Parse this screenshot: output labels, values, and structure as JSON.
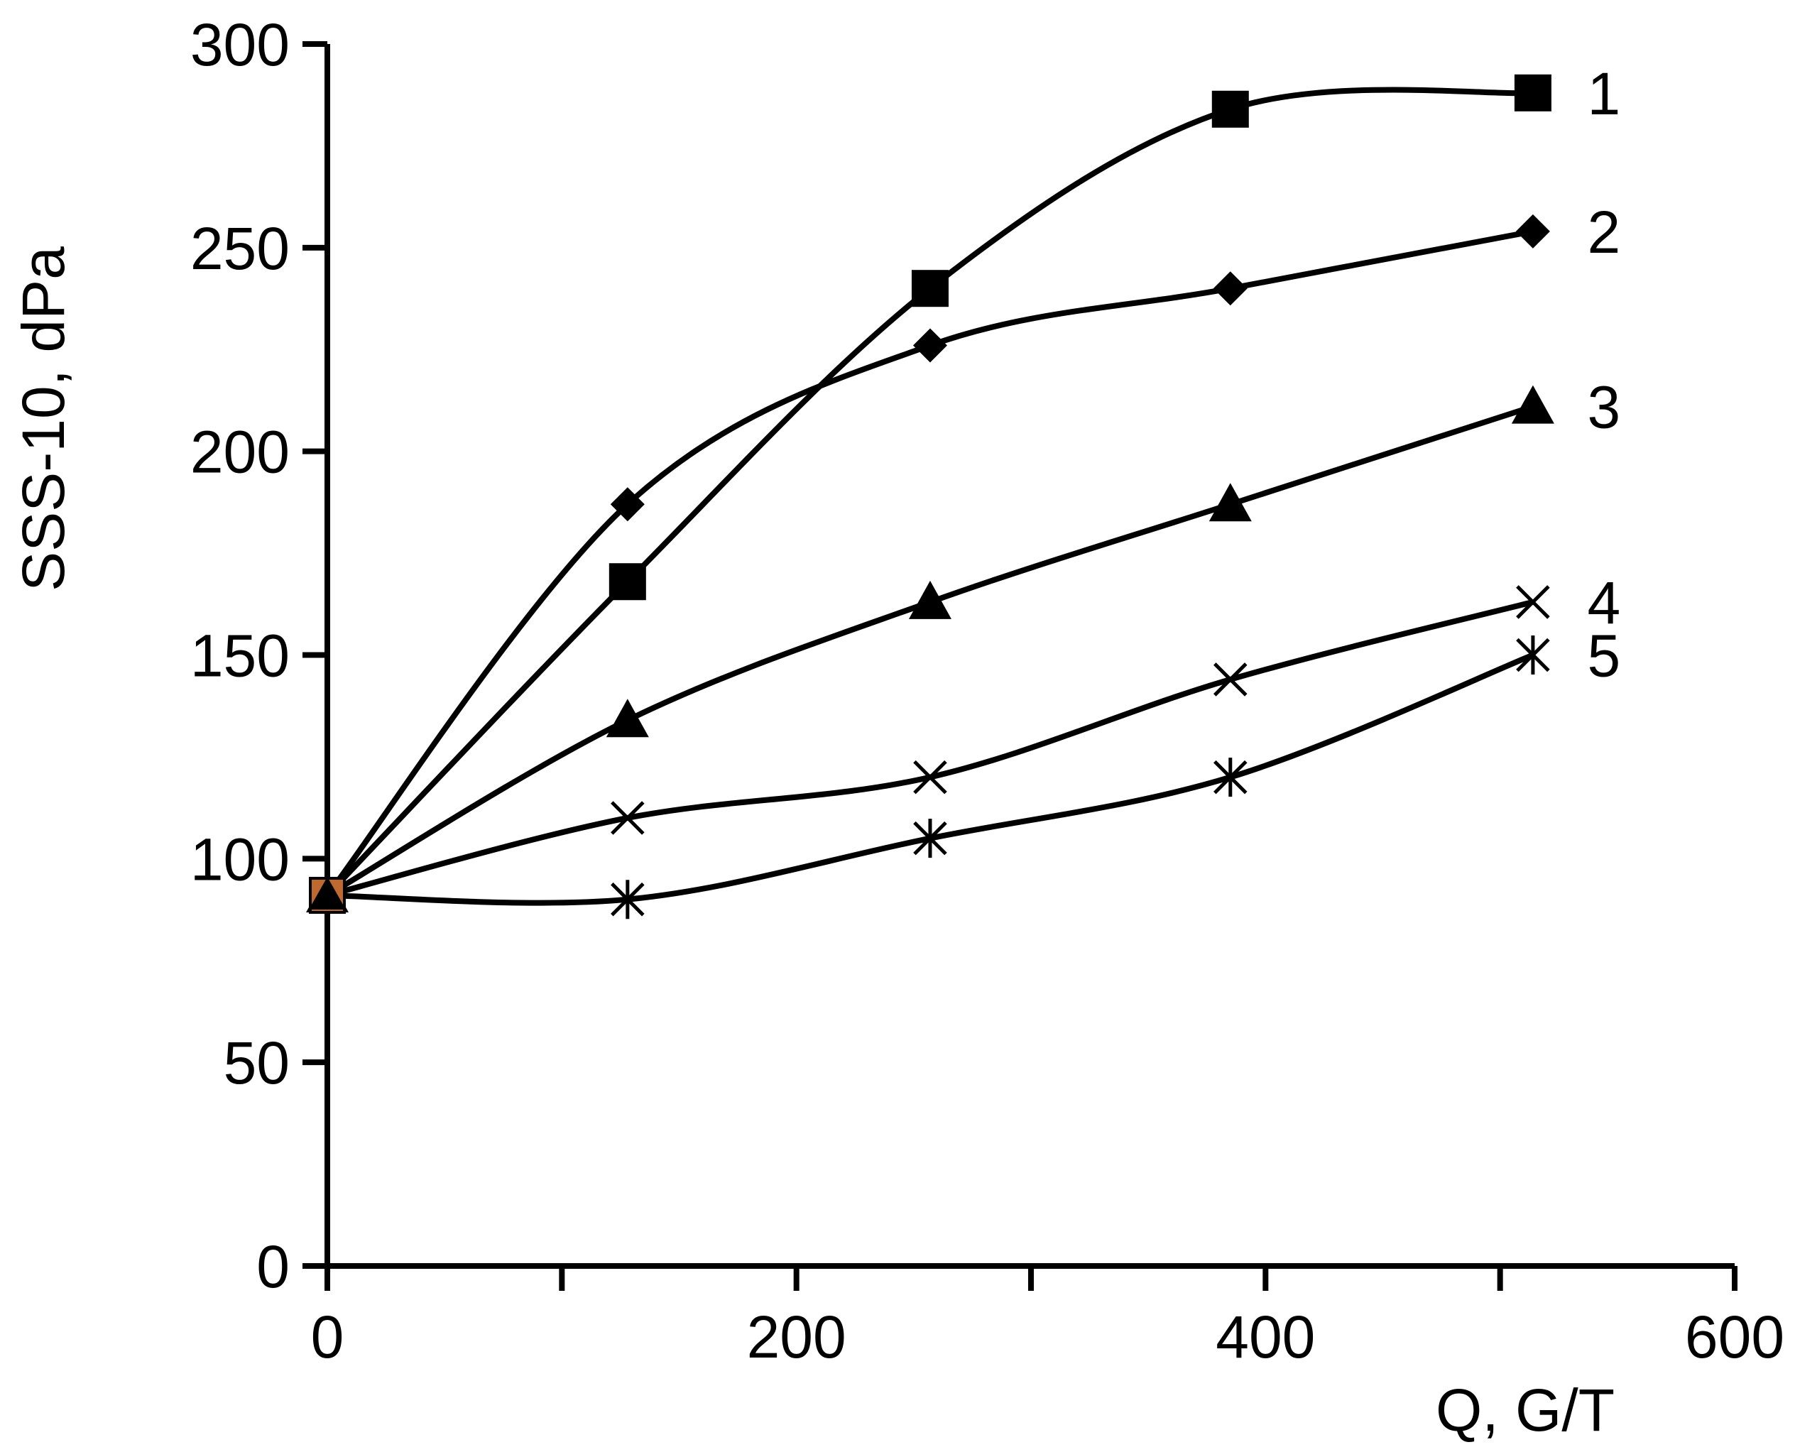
{
  "chart_data": {
    "type": "line",
    "title": "",
    "xlabel": "Q, G/T",
    "ylabel": "SSS-10, dPa",
    "xlim": [
      0,
      600
    ],
    "ylim": [
      0,
      300
    ],
    "x_ticks": [
      0,
      200,
      400,
      600
    ],
    "x_tick_labels": [
      "0",
      "200",
      "400",
      "600"
    ],
    "y_ticks": [
      0,
      50,
      100,
      150,
      200,
      250,
      300
    ],
    "y_tick_labels": [
      "0",
      "50",
      "100",
      "150",
      "200",
      "250",
      "300"
    ],
    "grid": false,
    "x": [
      0,
      128,
      257,
      385,
      514
    ],
    "series": [
      {
        "name": "1",
        "label": "1",
        "marker": "square",
        "values": [
          91,
          168,
          240,
          284,
          288
        ]
      },
      {
        "name": "2",
        "label": "2",
        "marker": "diamond",
        "values": [
          91,
          187,
          226,
          240,
          254
        ]
      },
      {
        "name": "3",
        "label": "3",
        "marker": "triangle",
        "values": [
          91,
          134,
          163,
          187,
          211
        ]
      },
      {
        "name": "4",
        "label": "4",
        "marker": "x",
        "values": [
          91,
          110,
          120,
          144,
          163
        ]
      },
      {
        "name": "5",
        "label": "5",
        "marker": "star",
        "values": [
          91,
          90,
          105,
          120,
          150
        ]
      }
    ]
  }
}
